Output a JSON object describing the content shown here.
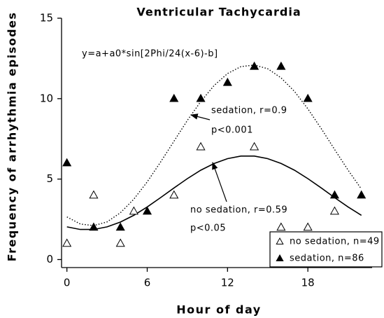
{
  "chart_data": {
    "type": "scatter",
    "title": "Ventricular Tachycardia",
    "x_label": "Hour of day",
    "y_label": "Frequency of arrhythmia episodes",
    "xlim": [
      -0.4,
      22.8
    ],
    "ylim": [
      -0.5,
      15
    ],
    "xticks": [
      0,
      6,
      12,
      18
    ],
    "yticks": [
      0,
      5,
      10,
      15
    ],
    "legend": "lower right",
    "series": [
      {
        "name": "no sedation, n=49",
        "marker": "open-triangle",
        "color": "#000000",
        "x": [
          0,
          2,
          4,
          5,
          8,
          10,
          14,
          16,
          18,
          20
        ],
        "values": [
          1,
          4,
          1,
          3,
          4,
          7,
          7,
          2,
          2,
          3
        ]
      },
      {
        "name": "sedation, n=86",
        "marker": "filled-triangle",
        "color": "#000000",
        "x": [
          0,
          2,
          4,
          6,
          8,
          10,
          12,
          14,
          16,
          18,
          20,
          22
        ],
        "values": [
          6,
          2,
          2,
          3,
          10,
          10,
          11,
          12,
          12,
          10,
          4,
          4
        ]
      }
    ],
    "curves": [
      {
        "style": "solid",
        "x": [
          0,
          1,
          2,
          3,
          4,
          5,
          6,
          7,
          8,
          9,
          10,
          11,
          12,
          13,
          14,
          15,
          16,
          17,
          18,
          19,
          20,
          21,
          22
        ],
        "values": [
          2.03,
          1.87,
          1.87,
          2.03,
          2.33,
          2.75,
          3.27,
          3.85,
          4.45,
          5.03,
          5.55,
          5.97,
          6.27,
          6.43,
          6.43,
          6.27,
          5.97,
          5.55,
          5.03,
          4.45,
          3.85,
          3.27,
          2.75
        ]
      },
      {
        "style": "dotted",
        "x": [
          0,
          1,
          2,
          3,
          4,
          5,
          6,
          7,
          8,
          9,
          10,
          11,
          12,
          13,
          14,
          15,
          16,
          17,
          18,
          19,
          20,
          21,
          22
        ],
        "values": [
          2.65,
          2.21,
          2.11,
          2.34,
          2.91,
          3.75,
          4.83,
          6.06,
          7.36,
          8.65,
          9.82,
          10.82,
          11.56,
          11.99,
          12.09,
          11.86,
          11.29,
          10.45,
          9.37,
          8.14,
          6.84,
          5.56,
          4.38
        ]
      }
    ],
    "annotations": [
      "y=a+a0*sin[2Phi/24(x-6)-b]",
      "sedation, r=0.9",
      "p<0.001",
      "no sedation, r=0.59",
      "p<0.05"
    ]
  }
}
